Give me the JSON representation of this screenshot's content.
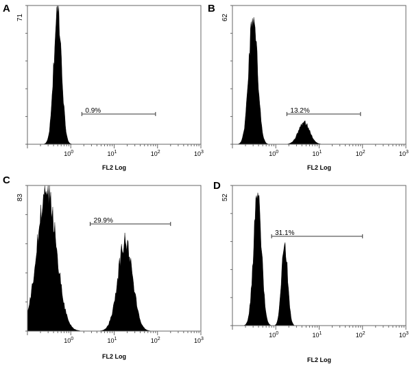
{
  "chart_data": [
    {
      "type": "area",
      "panel": "A",
      "title": "",
      "xlabel": "FL2 Log",
      "ylabel": "",
      "x_scale": "log",
      "xlim": [
        0.1,
        1000
      ],
      "ylim": [
        0,
        71
      ],
      "y_tick_labels": [
        "71"
      ],
      "x_tick_labels": [
        "10",
        "10",
        "10",
        "10"
      ],
      "x_tick_exponents": [
        "0",
        "1",
        "2",
        "3"
      ],
      "gate": {
        "label": "0.9%",
        "x_start": 1.8,
        "x_end": 90
      },
      "peaks": [
        {
          "center": 0.5,
          "height": 71,
          "width": 0.09
        }
      ]
    },
    {
      "type": "area",
      "panel": "B",
      "title": "",
      "xlabel": "FL2 Log",
      "ylabel": "",
      "x_scale": "log",
      "xlim": [
        0.1,
        1000
      ],
      "ylim": [
        0,
        62
      ],
      "y_tick_labels": [
        "62"
      ],
      "x_tick_labels": [
        "10",
        "10",
        "10",
        "10"
      ],
      "x_tick_exponents": [
        "0",
        "1",
        "2",
        "3"
      ],
      "gate": {
        "label": "13.2%",
        "x_start": 1.8,
        "x_end": 90
      },
      "peaks": [
        {
          "center": 0.3,
          "height": 60,
          "width": 0.1
        },
        {
          "center": 4.5,
          "height": 10,
          "width": 0.13
        }
      ]
    },
    {
      "type": "area",
      "panel": "C",
      "title": "",
      "xlabel": "FL2 Log",
      "ylabel": "",
      "x_scale": "log",
      "xlim": [
        0.1,
        1000
      ],
      "ylim": [
        0,
        83
      ],
      "y_tick_labels": [
        "83"
      ],
      "x_tick_labels": [
        "10",
        "10",
        "10",
        "10"
      ],
      "x_tick_exponents": [
        "0",
        "1",
        "2",
        "3"
      ],
      "gate": {
        "label": "29.9%",
        "x_start": 2.8,
        "x_end": 200
      },
      "peaks": [
        {
          "center": 0.28,
          "height": 83,
          "width": 0.22
        },
        {
          "center": 18,
          "height": 53,
          "width": 0.17
        }
      ]
    },
    {
      "type": "area",
      "panel": "D",
      "title": "",
      "xlabel": "FL2 Log",
      "ylabel": "",
      "x_scale": "log",
      "xlim": [
        0.1,
        1000
      ],
      "ylim": [
        0,
        52
      ],
      "y_tick_labels": [
        "52"
      ],
      "x_tick_labels": [
        "10",
        "10",
        "10",
        "10"
      ],
      "x_tick_exponents": [
        "0",
        "1",
        "2",
        "3"
      ],
      "gate": {
        "label": "31.1%",
        "x_start": 0.8,
        "x_end": 100
      },
      "peaks": [
        {
          "center": 0.38,
          "height": 51,
          "width": 0.09
        },
        {
          "center": 1.6,
          "height": 31,
          "width": 0.07
        }
      ]
    }
  ]
}
